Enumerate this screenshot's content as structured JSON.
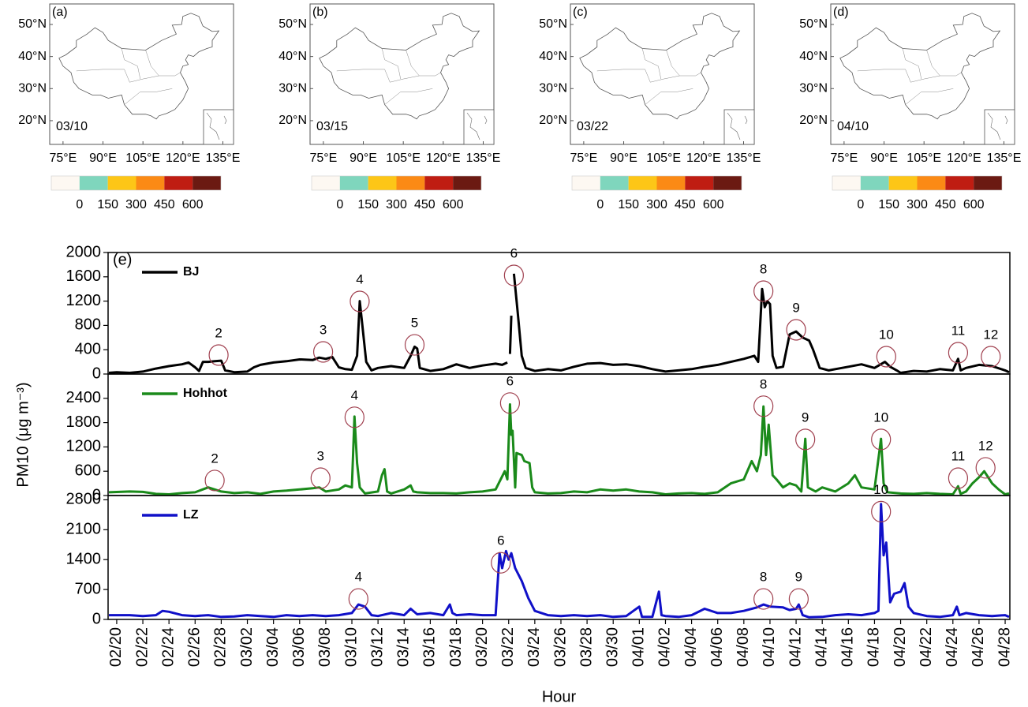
{
  "chart_data": [
    {
      "type": "map",
      "panel_label": "(a)",
      "date": "03/10",
      "xlim": [
        70,
        139
      ],
      "ylim": [
        12.6,
        56.4
      ],
      "xticks": [
        {
          "value": 75,
          "label": "75°E"
        },
        {
          "value": 90,
          "label": "90°E"
        },
        {
          "value": 105,
          "label": "105°E"
        },
        {
          "value": 120,
          "label": "120°E"
        },
        {
          "value": 135,
          "label": "135°E"
        }
      ],
      "yticks": [
        {
          "value": 20,
          "label": "20°N"
        },
        {
          "value": 30,
          "label": "30°N"
        },
        {
          "value": 40,
          "label": "40°N"
        },
        {
          "value": 50,
          "label": "50°N"
        }
      ],
      "colorbar": {
        "colors": [
          "#fdf8f2",
          "#7fd6bd",
          "#fdc617",
          "#fb8a15",
          "#bf1d12",
          "#6b1a12"
        ],
        "clim": [
          -150,
          750
        ],
        "ticks": [
          0,
          150,
          300,
          450,
          600
        ]
      }
    },
    {
      "type": "map",
      "panel_label": "(b)",
      "date": "03/15",
      "xlim": [
        70,
        139
      ],
      "ylim": [
        12.6,
        56.4
      ],
      "xticks": [
        {
          "value": 75,
          "label": "75°E"
        },
        {
          "value": 90,
          "label": "90°E"
        },
        {
          "value": 105,
          "label": "105°E"
        },
        {
          "value": 120,
          "label": "120°E"
        },
        {
          "value": 135,
          "label": "135°E"
        }
      ],
      "yticks": [
        {
          "value": 20,
          "label": "20°N"
        },
        {
          "value": 30,
          "label": "30°N"
        },
        {
          "value": 40,
          "label": "40°N"
        },
        {
          "value": 50,
          "label": "50°N"
        }
      ],
      "colorbar": {
        "colors": [
          "#fdf8f2",
          "#7fd6bd",
          "#fdc617",
          "#fb8a15",
          "#bf1d12",
          "#6b1a12"
        ],
        "clim": [
          -150,
          750
        ],
        "ticks": [
          0,
          150,
          300,
          450,
          600
        ]
      }
    },
    {
      "type": "map",
      "panel_label": "(c)",
      "date": "03/22",
      "xlim": [
        70,
        139
      ],
      "ylim": [
        12.6,
        56.4
      ],
      "xticks": [
        {
          "value": 75,
          "label": "75°E"
        },
        {
          "value": 90,
          "label": "90°E"
        },
        {
          "value": 105,
          "label": "105°E"
        },
        {
          "value": 120,
          "label": "120°E"
        },
        {
          "value": 135,
          "label": "135°E"
        }
      ],
      "yticks": [
        {
          "value": 20,
          "label": "20°N"
        },
        {
          "value": 30,
          "label": "30°N"
        },
        {
          "value": 40,
          "label": "40°N"
        },
        {
          "value": 50,
          "label": "50°N"
        }
      ],
      "colorbar": {
        "colors": [
          "#fdf8f2",
          "#7fd6bd",
          "#fdc617",
          "#fb8a15",
          "#bf1d12",
          "#6b1a12"
        ],
        "clim": [
          -150,
          750
        ],
        "ticks": [
          0,
          150,
          300,
          450,
          600
        ]
      }
    },
    {
      "type": "map",
      "panel_label": "(d)",
      "date": "04/10",
      "xlim": [
        70,
        139
      ],
      "ylim": [
        12.6,
        56.4
      ],
      "xticks": [
        {
          "value": 75,
          "label": "75°E"
        },
        {
          "value": 90,
          "label": "90°E"
        },
        {
          "value": 105,
          "label": "105°E"
        },
        {
          "value": 120,
          "label": "120°E"
        },
        {
          "value": 135,
          "label": "135°E"
        }
      ],
      "yticks": [
        {
          "value": 20,
          "label": "20°N"
        },
        {
          "value": 30,
          "label": "30°N"
        },
        {
          "value": 40,
          "label": "40°N"
        },
        {
          "value": 50,
          "label": "50°N"
        }
      ],
      "colorbar": {
        "colors": [
          "#fdf8f2",
          "#7fd6bd",
          "#fdc617",
          "#fb8a15",
          "#bf1d12",
          "#6b1a12"
        ],
        "clim": [
          -150,
          750
        ],
        "ticks": [
          0,
          150,
          300,
          450,
          600
        ]
      }
    },
    {
      "type": "line",
      "panel_label": "(e)",
      "name": "BJ",
      "color": "#000000",
      "xlim": [
        -0.66,
        68.36
      ],
      "ylim": [
        0,
        2000
      ],
      "yticks": [
        0,
        400,
        800,
        1200,
        1600,
        2000
      ],
      "x": [
        -0.6,
        0,
        1,
        2,
        3,
        4,
        5,
        5.5,
        6,
        6.3,
        6.6,
        7,
        7.5,
        8,
        8.3,
        9,
        10,
        10.5,
        11,
        12,
        13,
        14,
        15,
        15.5,
        16,
        16.5,
        17,
        17.5,
        18,
        18.4,
        18.6,
        18.8,
        19.1,
        19.5,
        20,
        21,
        22,
        22.5,
        22.8,
        23,
        23.2,
        24,
        25,
        26,
        27,
        28,
        29,
        29.5,
        29.9,
        30.0,
        30.1,
        30.2,
        30.3,
        30.4,
        30.7,
        31,
        31.3,
        32,
        33,
        34,
        35,
        36,
        37,
        38,
        39,
        40,
        41,
        42,
        43,
        44,
        45,
        46,
        47,
        48,
        48.8,
        49.1,
        49.4,
        49.6,
        49.8,
        50,
        50.2,
        50.5,
        51,
        51.5,
        52,
        52.5,
        53,
        53.3,
        53.8,
        54.5,
        55,
        56,
        57,
        58,
        58.8,
        59.2,
        59.7,
        60,
        61,
        62,
        63,
        64,
        64.4,
        64.6,
        65,
        66,
        67,
        68,
        68.3
      ],
      "values": [
        20,
        30,
        20,
        40,
        90,
        130,
        160,
        190,
        110,
        50,
        200,
        200,
        210,
        220,
        60,
        30,
        40,
        110,
        150,
        190,
        210,
        240,
        230,
        270,
        250,
        280,
        110,
        80,
        70,
        300,
        1200,
        800,
        200,
        60,
        100,
        130,
        100,
        300,
        450,
        420,
        100,
        50,
        80,
        160,
        100,
        140,
        170,
        150,
        190,
        null,
        330,
        960,
        null,
        1650,
        1000,
        300,
        100,
        50,
        80,
        60,
        120,
        170,
        180,
        150,
        160,
        130,
        80,
        40,
        60,
        80,
        120,
        150,
        200,
        250,
        300,
        200,
        1400,
        1100,
        1200,
        1150,
        300,
        100,
        120,
        650,
        700,
        600,
        550,
        400,
        100,
        60,
        80,
        120,
        160,
        100,
        200,
        120,
        60,
        20,
        50,
        40,
        80,
        60,
        250,
        60,
        100,
        150,
        130,
        60,
        30
      ],
      "events": [
        {
          "label": "2",
          "x": 7.8,
          "y": 312
        },
        {
          "label": "3",
          "x": 15.8,
          "y": 364
        },
        {
          "label": "4",
          "x": 18.6,
          "y": 1195
        },
        {
          "label": "5",
          "x": 22.8,
          "y": 480
        },
        {
          "label": "6",
          "x": 30.4,
          "y": 1623
        },
        {
          "label": "8",
          "x": 49.5,
          "y": 1364
        },
        {
          "label": "9",
          "x": 52.0,
          "y": 727
        },
        {
          "label": "10",
          "x": 58.9,
          "y": 286
        },
        {
          "label": "11",
          "x": 64.4,
          "y": 351
        },
        {
          "label": "12",
          "x": 66.9,
          "y": 286
        }
      ]
    },
    {
      "type": "line",
      "name": "Hohhot",
      "color": "#1a8a1a",
      "ylabel": "PM10 (μg m⁻³)",
      "xlim": [
        -0.66,
        68.36
      ],
      "ylim": [
        0,
        3000
      ],
      "yticks": [
        0,
        600,
        1200,
        1800,
        2400
      ],
      "x": [
        -0.6,
        1,
        2,
        3,
        4,
        5,
        6,
        7,
        7.5,
        8,
        9,
        10,
        11,
        12,
        13,
        14,
        15,
        15.5,
        16,
        17,
        17.5,
        18,
        18.2,
        18.4,
        18.6,
        19,
        20,
        20.3,
        20.5,
        20.7,
        21,
        22,
        22.5,
        22.7,
        23,
        24,
        25,
        26,
        27,
        28,
        29,
        29.7,
        29.9,
        30.1,
        30.2,
        30.3,
        30.5,
        30.6,
        31,
        31.2,
        31.6,
        31.8,
        32,
        33,
        34,
        35,
        36,
        37,
        38,
        39,
        40,
        41,
        42,
        43,
        44,
        45,
        46,
        47,
        48,
        48.6,
        49,
        49.3,
        49.5,
        49.7,
        49.9,
        50.2,
        50.5,
        51,
        51.5,
        52,
        52.4,
        52.7,
        52.9,
        53.5,
        54,
        55,
        56,
        56.5,
        57,
        58,
        58.5,
        58.7,
        59,
        60,
        61,
        62,
        63,
        64,
        64.4,
        64.6,
        65,
        65.5,
        66,
        66.4,
        66.8,
        67,
        67.5,
        68,
        68.3
      ],
      "values": [
        80,
        100,
        90,
        40,
        30,
        60,
        80,
        200,
        150,
        100,
        60,
        80,
        40,
        100,
        120,
        150,
        180,
        200,
        100,
        150,
        250,
        200,
        1950,
        800,
        200,
        50,
        100,
        500,
        650,
        100,
        50,
        150,
        250,
        100,
        80,
        60,
        60,
        50,
        80,
        100,
        150,
        600,
        400,
        2250,
        1500,
        1600,
        200,
        1050,
        1000,
        850,
        800,
        200,
        80,
        50,
        60,
        100,
        80,
        150,
        120,
        150,
        100,
        80,
        30,
        50,
        60,
        40,
        80,
        300,
        400,
        850,
        600,
        1000,
        2200,
        1000,
        1750,
        500,
        400,
        200,
        300,
        250,
        100,
        1400,
        200,
        100,
        200,
        100,
        300,
        500,
        200,
        150,
        1400,
        300,
        80,
        50,
        40,
        60,
        40,
        30,
        230,
        40,
        100,
        300,
        450,
        600,
        400,
        300,
        150,
        30,
        50
      ],
      "events": [
        {
          "label": "2",
          "x": 7.5,
          "y": 371
        },
        {
          "label": "3",
          "x": 15.6,
          "y": 429
        },
        {
          "label": "4",
          "x": 18.2,
          "y": 1932
        },
        {
          "label": "6",
          "x": 30.1,
          "y": 2283
        },
        {
          "label": "8",
          "x": 49.5,
          "y": 2205
        },
        {
          "label": "9",
          "x": 52.7,
          "y": 1385
        },
        {
          "label": "10",
          "x": 58.5,
          "y": 1385
        },
        {
          "label": "11",
          "x": 64.4,
          "y": 429
        },
        {
          "label": "12",
          "x": 66.5,
          "y": 683
        }
      ]
    },
    {
      "type": "line",
      "name": "LZ",
      "color": "#1010c8",
      "xlabel": "Hour",
      "xlim": [
        -0.66,
        68.36
      ],
      "ylim": [
        0,
        2900
      ],
      "yticks": [
        0,
        700,
        1400,
        2100,
        2800
      ],
      "xticks": [
        {
          "value": 0,
          "label": "02/20"
        },
        {
          "value": 2,
          "label": "02/22"
        },
        {
          "value": 4,
          "label": "02/24"
        },
        {
          "value": 6,
          "label": "02/26"
        },
        {
          "value": 8,
          "label": "02/28"
        },
        {
          "value": 10,
          "label": "03/02"
        },
        {
          "value": 12,
          "label": "03/04"
        },
        {
          "value": 14,
          "label": "03/06"
        },
        {
          "value": 16,
          "label": "03/08"
        },
        {
          "value": 18,
          "label": "03/10"
        },
        {
          "value": 20,
          "label": "03/12"
        },
        {
          "value": 22,
          "label": "03/14"
        },
        {
          "value": 24,
          "label": "03/16"
        },
        {
          "value": 26,
          "label": "03/18"
        },
        {
          "value": 28,
          "label": "03/20"
        },
        {
          "value": 30,
          "label": "03/22"
        },
        {
          "value": 32,
          "label": "03/24"
        },
        {
          "value": 34,
          "label": "03/26"
        },
        {
          "value": 36,
          "label": "03/28"
        },
        {
          "value": 38,
          "label": "03/30"
        },
        {
          "value": 40,
          "label": "04/01"
        },
        {
          "value": 42,
          "label": "04/02"
        },
        {
          "value": 44,
          "label": "04/04"
        },
        {
          "value": 46,
          "label": "04/06"
        },
        {
          "value": 48,
          "label": "04/08"
        },
        {
          "value": 50,
          "label": "04/10"
        },
        {
          "value": 52,
          "label": "04/12"
        },
        {
          "value": 54,
          "label": "04/14"
        },
        {
          "value": 56,
          "label": "04/16"
        },
        {
          "value": 58,
          "label": "04/18"
        },
        {
          "value": 60,
          "label": "04/20"
        },
        {
          "value": 62,
          "label": "04/22"
        },
        {
          "value": 64,
          "label": "04/24"
        },
        {
          "value": 66,
          "label": "04/26"
        },
        {
          "value": 68,
          "label": "04/28"
        }
      ],
      "x": [
        -0.6,
        1,
        2,
        3,
        3.5,
        4,
        5,
        6,
        7,
        8,
        9,
        10,
        11,
        12,
        13,
        14,
        15,
        16,
        17,
        18,
        18.5,
        19,
        19.5,
        20,
        21,
        22,
        22.5,
        23,
        24,
        25,
        25.5,
        25.7,
        26,
        27,
        28,
        29,
        29.3,
        29.5,
        29.8,
        30,
        30.2,
        30.5,
        31,
        31.5,
        32,
        33,
        34,
        35,
        36,
        37,
        38,
        39,
        40,
        40.2,
        41,
        41.5,
        41.7,
        42,
        43,
        44,
        45,
        46,
        47,
        48,
        49,
        49.5,
        50,
        51,
        51.5,
        52,
        52.2,
        52.5,
        53,
        54,
        55,
        56,
        57,
        58,
        58.3,
        58.5,
        58.7,
        58.9,
        59.2,
        59.5,
        60,
        60.3,
        60.6,
        61,
        62,
        63,
        64,
        64.3,
        64.5,
        65,
        66,
        67,
        68,
        68.3
      ],
      "values": [
        100,
        100,
        80,
        100,
        200,
        180,
        100,
        80,
        100,
        60,
        70,
        100,
        80,
        60,
        100,
        80,
        100,
        80,
        100,
        150,
        350,
        300,
        100,
        80,
        150,
        100,
        250,
        120,
        150,
        100,
        350,
        150,
        100,
        120,
        100,
        100,
        1550,
        1200,
        1600,
        1400,
        1550,
        1200,
        900,
        500,
        200,
        100,
        80,
        100,
        80,
        100,
        60,
        80,
        300,
        60,
        60,
        650,
        100,
        80,
        60,
        100,
        250,
        150,
        150,
        200,
        280,
        350,
        300,
        280,
        220,
        250,
        350,
        100,
        50,
        60,
        100,
        120,
        100,
        150,
        200,
        2700,
        1500,
        1800,
        400,
        600,
        650,
        850,
        300,
        150,
        80,
        60,
        100,
        300,
        100,
        150,
        100,
        80,
        100,
        60
      ],
      "events": [
        {
          "label": "4",
          "x": 18.5,
          "y": 479
        },
        {
          "label": "6",
          "x": 29.4,
          "y": 1326
        },
        {
          "label": "8",
          "x": 49.5,
          "y": 479
        },
        {
          "label": "9",
          "x": 52.2,
          "y": 479
        },
        {
          "label": "10",
          "x": 58.5,
          "y": 2523
        }
      ]
    }
  ]
}
